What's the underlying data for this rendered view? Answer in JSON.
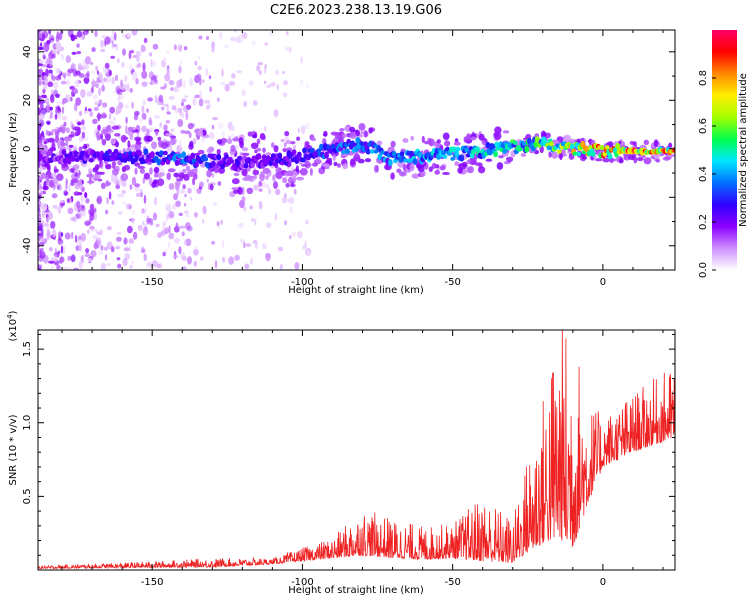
{
  "figure": {
    "title": "C2E6.2023.238.13.19.G06"
  },
  "colors": {
    "snr_line": "#ee2222",
    "colormap": [
      "#ffffff",
      "#cf8fff",
      "#8a00ff",
      "#3000ff",
      "#0070ff",
      "#00e8ff",
      "#00ff4a",
      "#a6ff00",
      "#ffee00",
      "#ff8800",
      "#ff0000",
      "#ff0066"
    ]
  },
  "chart_data": [
    {
      "type": "heatmap",
      "xlabel": "Height of straight line (km)",
      "ylabel": "Frequency (Hz)",
      "xlim": [
        -188,
        24
      ],
      "ylim": [
        -50,
        49
      ],
      "xticks": [
        -150,
        -100,
        -50,
        0
      ],
      "yticks": [
        -40,
        -20,
        0,
        20,
        40
      ],
      "colorbar": {
        "label": "Normalized spectral amplitude",
        "range": [
          0.0,
          1.0
        ],
        "ticks": [
          0.0,
          0.2,
          0.4,
          0.6,
          0.8
        ]
      },
      "ridge": {
        "x": [
          -188,
          -160,
          -140,
          -120,
          -100,
          -80,
          -70,
          -60,
          -50,
          -40,
          -30,
          -20,
          -10,
          0,
          10,
          24
        ],
        "frequency": [
          -3,
          -3,
          -4,
          -6,
          -3,
          2,
          -4,
          -3,
          -2,
          -1,
          1,
          2,
          0,
          -1,
          -1,
          -1
        ],
        "amplitude": [
          0.2,
          0.28,
          0.35,
          0.22,
          0.3,
          0.38,
          0.4,
          0.42,
          0.46,
          0.48,
          0.52,
          0.55,
          0.7,
          0.85,
          0.85,
          0.8
        ]
      }
    },
    {
      "type": "line",
      "xlabel": "Height of straight line (km)",
      "ylabel": "SNR (10 * v/v)",
      "yscale_label": "(x10",
      "yscale_exp": "4",
      "yscale_close": ")",
      "xlim": [
        -188,
        24
      ],
      "ylim": [
        0,
        1.63
      ],
      "xticks": [
        -150,
        -100,
        -50,
        0
      ],
      "yticks": [
        0.5,
        1.0,
        1.5
      ],
      "ytick_labels": [
        "0.5",
        "1.0",
        "1.5"
      ],
      "envelope": {
        "x": [
          -188,
          -160,
          -130,
          -110,
          -100,
          -90,
          -80,
          -70,
          -60,
          -50,
          -40,
          -30,
          -25,
          -20,
          -15,
          -10,
          -5,
          0,
          10,
          24
        ],
        "base": [
          0.01,
          0.015,
          0.02,
          0.04,
          0.06,
          0.08,
          0.1,
          0.08,
          0.07,
          0.08,
          0.06,
          0.05,
          0.12,
          0.18,
          0.22,
          0.15,
          0.45,
          0.7,
          0.8,
          0.9
        ],
        "peak": [
          0.03,
          0.05,
          0.08,
          0.08,
          0.15,
          0.22,
          0.42,
          0.35,
          0.3,
          0.32,
          0.52,
          0.35,
          0.8,
          1.2,
          1.7,
          1.7,
          1.15,
          1.05,
          1.2,
          1.4
        ]
      }
    }
  ]
}
